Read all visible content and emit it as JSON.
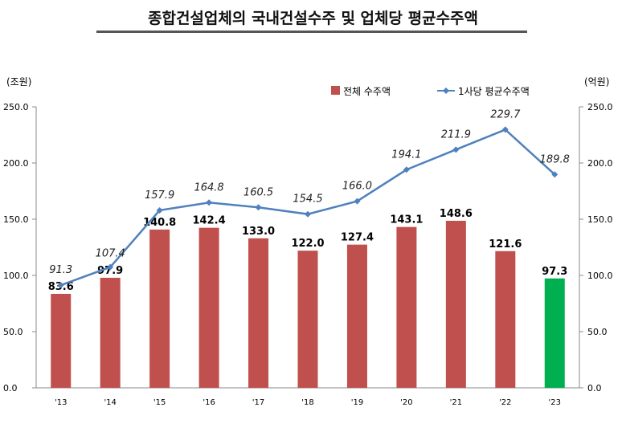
{
  "title": "종합건설업체의 국내건설수주 및 업체당 평균수주액",
  "colors": {
    "bar": "#c0504d",
    "bar_highlight": "#00b050",
    "line": "#4f81bd"
  },
  "chart_data": {
    "type": "bar",
    "title": "종합건설업체의 국내건설수주 및 업체당 평균수주액",
    "categories": [
      "'13",
      "'14",
      "'15",
      "'16",
      "'17",
      "'18",
      "'19",
      "'20",
      "'21",
      "'22",
      "'23"
    ],
    "left_axis": {
      "unit": "(조원)",
      "range": [
        0,
        250
      ],
      "ticks": [
        "0.0",
        "50.0",
        "100.0",
        "150.0",
        "200.0",
        "250.0"
      ]
    },
    "right_axis": {
      "unit": "(억원)",
      "range": [
        0,
        250
      ],
      "ticks": [
        "0.0",
        "50.0",
        "100.0",
        "150.0",
        "200.0",
        "250.0"
      ]
    },
    "series": [
      {
        "name": "전체 수주액",
        "type": "bar",
        "axis": "left",
        "values": [
          83.6,
          97.9,
          140.8,
          142.4,
          133.0,
          122.0,
          127.4,
          143.1,
          148.6,
          121.6,
          97.3
        ],
        "labels": [
          "83.6",
          "97.9",
          "140.8",
          "142.4",
          "133.0",
          "122.0",
          "127.4",
          "143.1",
          "148.6",
          "121.6",
          "97.3"
        ],
        "highlight_index": 10
      },
      {
        "name": "1사당 평균수주액",
        "type": "line",
        "axis": "right",
        "values": [
          91.3,
          107.4,
          157.9,
          164.8,
          160.5,
          154.5,
          166.0,
          194.1,
          211.9,
          229.7,
          189.8
        ],
        "labels": [
          "91.3",
          "107.4",
          "157.9",
          "164.8",
          "160.5",
          "154.5",
          "166.0",
          "194.1",
          "211.9",
          "229.7",
          "189.8"
        ]
      }
    ],
    "legend": "top-right",
    "grid": false
  }
}
